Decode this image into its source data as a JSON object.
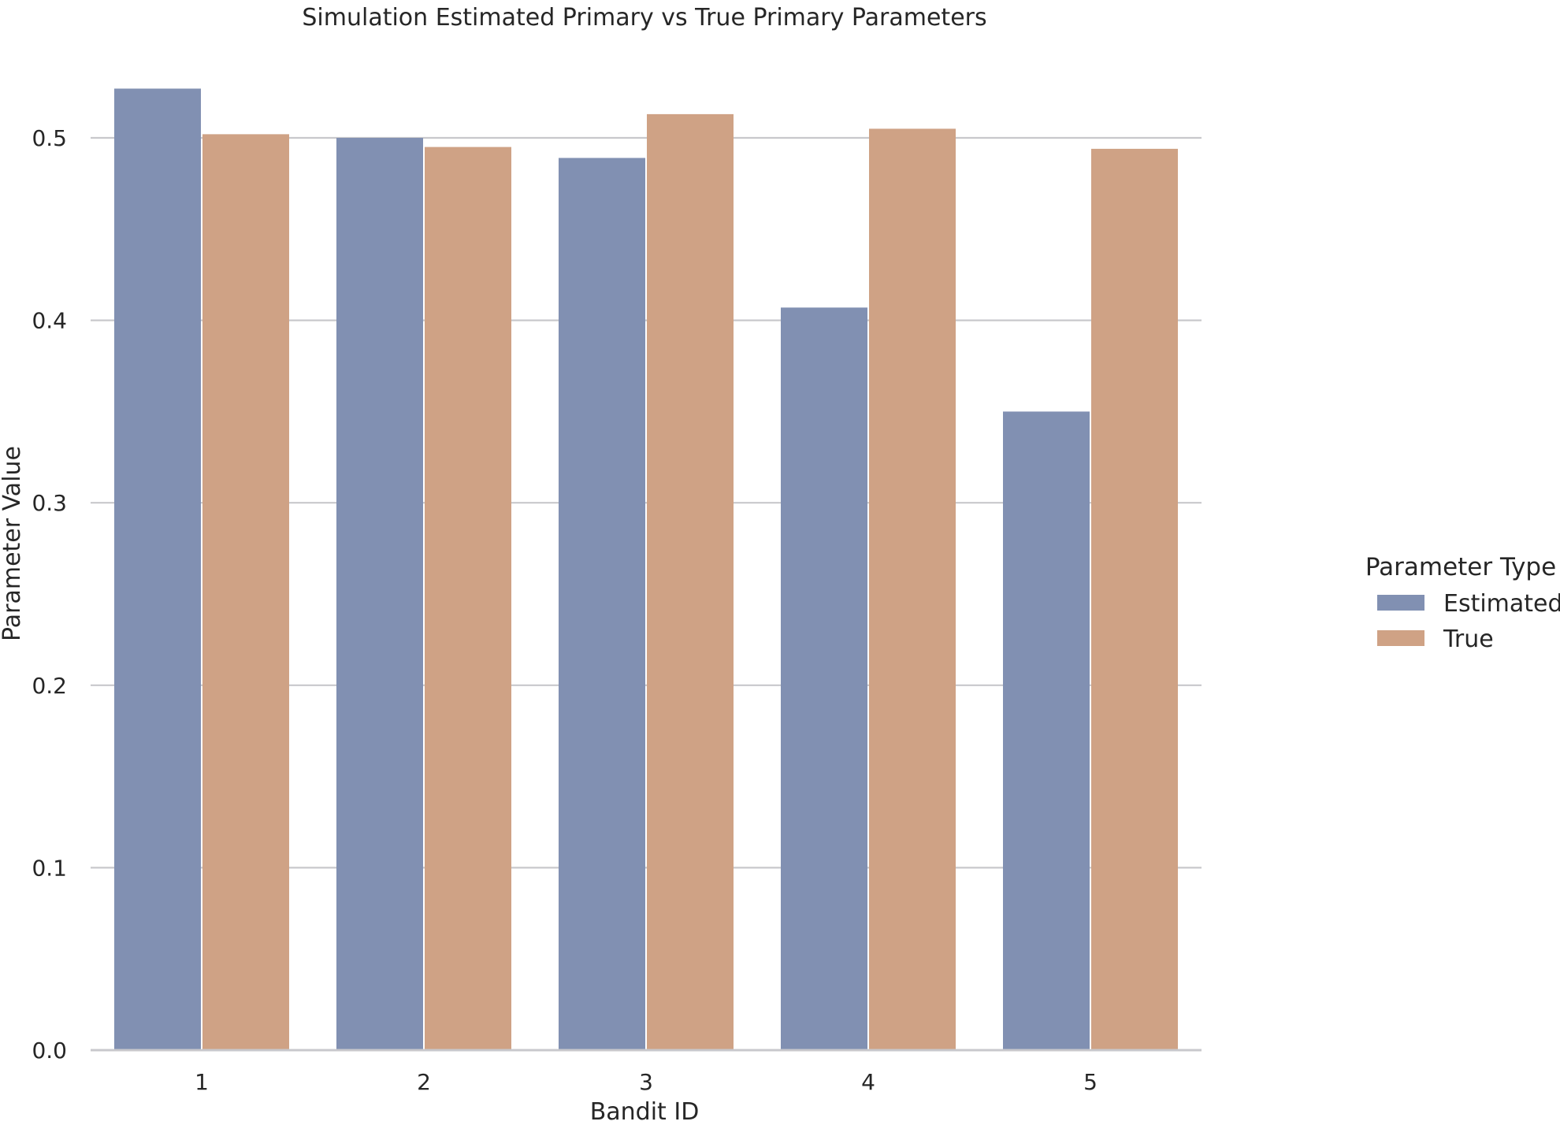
{
  "chart_data": {
    "type": "bar",
    "title": "Simulation Estimated Primary vs True Primary Parameters",
    "xlabel": "Bandit ID",
    "ylabel": "Parameter Value",
    "categories": [
      "1",
      "2",
      "3",
      "4",
      "5"
    ],
    "series": [
      {
        "name": "Estimated",
        "color": "#8190b2",
        "values": [
          0.527,
          0.5,
          0.489,
          0.407,
          0.35
        ]
      },
      {
        "name": "True",
        "color": "#cfa285",
        "values": [
          0.502,
          0.495,
          0.513,
          0.505,
          0.494
        ]
      }
    ],
    "ylim": [
      0,
      0.53
    ],
    "yticks": [
      "0.0",
      "0.1",
      "0.2",
      "0.3",
      "0.4",
      "0.5"
    ],
    "grid": "horizontal",
    "legend": {
      "title": "Parameter Type",
      "placement": "right"
    }
  }
}
